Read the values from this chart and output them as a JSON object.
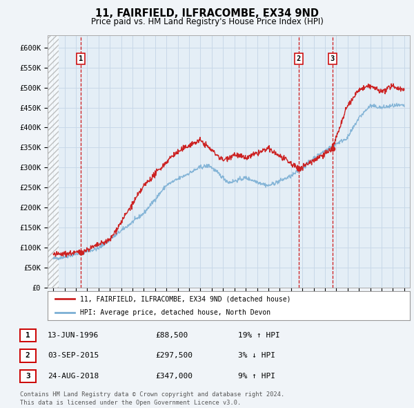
{
  "title": "11, FAIRFIELD, ILFRACOMBE, EX34 9ND",
  "subtitle": "Price paid vs. HM Land Registry's House Price Index (HPI)",
  "ylabel_ticks": [
    "£0",
    "£50K",
    "£100K",
    "£150K",
    "£200K",
    "£250K",
    "£300K",
    "£350K",
    "£400K",
    "£450K",
    "£500K",
    "£550K",
    "£600K"
  ],
  "ytick_values": [
    0,
    50000,
    100000,
    150000,
    200000,
    250000,
    300000,
    350000,
    400000,
    450000,
    500000,
    550000,
    600000
  ],
  "ylim": [
    0,
    630000
  ],
  "xlim_start": 1993.5,
  "xlim_end": 2025.5,
  "xticks": [
    1994,
    1995,
    1996,
    1997,
    1998,
    1999,
    2000,
    2001,
    2002,
    2003,
    2004,
    2005,
    2006,
    2007,
    2008,
    2009,
    2010,
    2011,
    2012,
    2013,
    2014,
    2015,
    2016,
    2017,
    2018,
    2019,
    2020,
    2021,
    2022,
    2023,
    2024,
    2025
  ],
  "sale_dates": [
    1996.45,
    2015.67,
    2018.65
  ],
  "sale_prices": [
    88500,
    297500,
    347000
  ],
  "sale_labels": [
    "1",
    "2",
    "3"
  ],
  "hpi_line_color": "#7bafd4",
  "price_line_color": "#cc2222",
  "sale_marker_color": "#cc2222",
  "vline_color": "#cc0000",
  "grid_color": "#c8d8e8",
  "bg_color": "#f0f4f8",
  "plot_bg": "#e4eef6",
  "hatch_bg": "#d8d8d8",
  "legend_entries": [
    "11, FAIRFIELD, ILFRACOMBE, EX34 9ND (detached house)",
    "HPI: Average price, detached house, North Devon"
  ],
  "table_rows": [
    {
      "label": "1",
      "date": "13-JUN-1996",
      "price": "£88,500",
      "hpi": "19% ↑ HPI"
    },
    {
      "label": "2",
      "date": "03-SEP-2015",
      "price": "£297,500",
      "hpi": "3% ↓ HPI"
    },
    {
      "label": "3",
      "date": "24-AUG-2018",
      "price": "£347,000",
      "hpi": "9% ↑ HPI"
    }
  ],
  "footer": "Contains HM Land Registry data © Crown copyright and database right 2024.\nThis data is licensed under the Open Government Licence v3.0."
}
